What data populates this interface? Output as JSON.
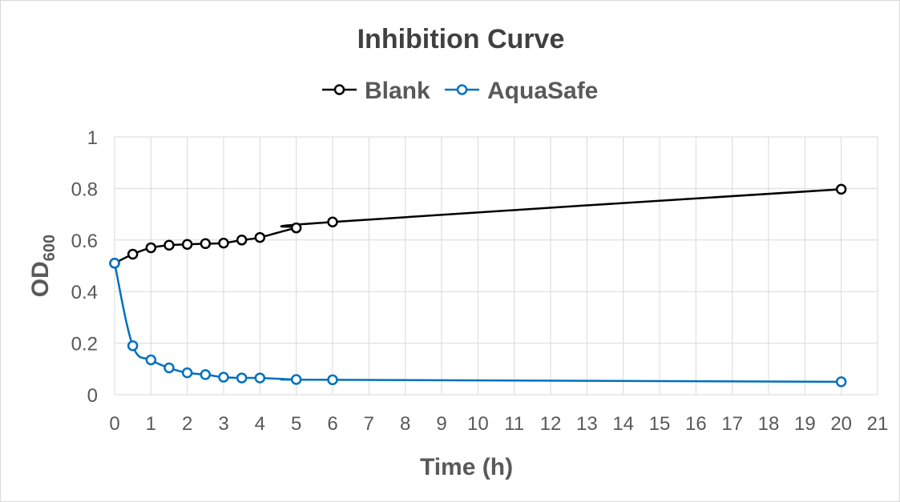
{
  "chart_data": {
    "type": "line",
    "title": "Inhibition Curve",
    "xlabel": "Time (h)",
    "ylabel": "OD",
    "ylabel_subscript": "600",
    "xlim": [
      0,
      21
    ],
    "ylim": [
      0,
      1
    ],
    "xticks": [
      "0",
      "1",
      "2",
      "3",
      "4",
      "5",
      "6",
      "7",
      "8",
      "9",
      "10",
      "11",
      "12",
      "13",
      "14",
      "15",
      "16",
      "17",
      "18",
      "19",
      "20",
      "21"
    ],
    "yticks": [
      "0",
      "0.2",
      "0.4",
      "0.6",
      "0.8",
      "1"
    ],
    "grid": true,
    "legend_position": "top",
    "series": [
      {
        "name": "Blank",
        "color": "#000000",
        "x": [
          0,
          0.5,
          1,
          1.5,
          2,
          2.5,
          3,
          3.5,
          4,
          5,
          6,
          20
        ],
        "y": [
          0.51,
          0.545,
          0.57,
          0.58,
          0.583,
          0.586,
          0.588,
          0.6,
          0.61,
          0.647,
          0.67,
          0.797
        ]
      },
      {
        "name": "AquaSafe",
        "color": "#0070c0",
        "x": [
          0,
          0.5,
          1,
          1.5,
          2,
          2.5,
          3,
          3.5,
          4,
          5,
          6,
          20
        ],
        "y": [
          0.51,
          0.19,
          0.135,
          0.104,
          0.085,
          0.078,
          0.068,
          0.065,
          0.065,
          0.059,
          0.058,
          0.05
        ]
      }
    ]
  }
}
